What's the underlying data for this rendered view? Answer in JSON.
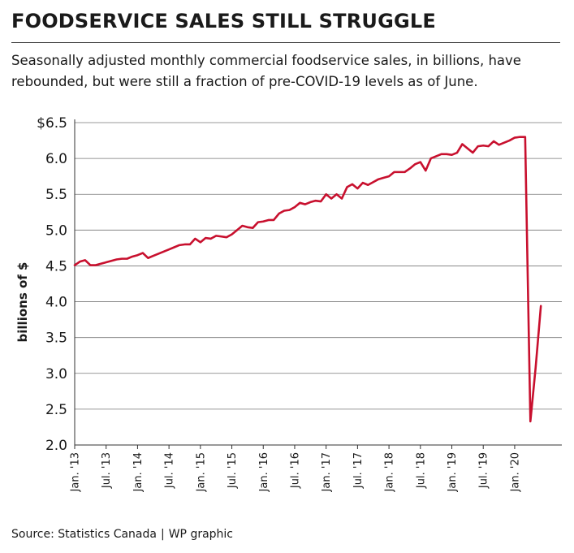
{
  "header": {
    "title": "FOODSERVICE SALES STILL STRUGGLE",
    "subtitle": "Seasonally adjusted monthly commercial foodservice sales, in billions, have rebounded, but were still a fraction of pre-COVID-19 levels as of June."
  },
  "footer": {
    "source": "Source: Statistics Canada",
    "separator": "|",
    "credit": "WP graphic"
  },
  "chart_data": {
    "type": "line",
    "title": "FOODSERVICE SALES STILL STRUGGLE",
    "subtitle": "Seasonally adjusted monthly commercial foodservice sales, in billions, have rebounded, but were still a fraction of pre-COVID-19 levels as of June.",
    "xlabel": "",
    "ylabel": "billions of $",
    "ylim": [
      2.0,
      6.5
    ],
    "grid": "horizontal",
    "legend": "none",
    "line_color": "#c8102e",
    "y_ticks": [
      {
        "value": 2.0,
        "label": "2.0"
      },
      {
        "value": 2.5,
        "label": "2.5"
      },
      {
        "value": 3.0,
        "label": "3.0"
      },
      {
        "value": 3.5,
        "label": "3.5"
      },
      {
        "value": 4.0,
        "label": "4.0"
      },
      {
        "value": 4.5,
        "label": "4.5"
      },
      {
        "value": 5.0,
        "label": "5.0"
      },
      {
        "value": 5.5,
        "label": "5.5"
      },
      {
        "value": 6.0,
        "label": "6.0"
      },
      {
        "value": 6.5,
        "label": "$6.5"
      }
    ],
    "x_ticks": [
      {
        "date": "2013-01",
        "label": "Jan. '13"
      },
      {
        "date": "2013-07",
        "label": "Jul. '13"
      },
      {
        "date": "2014-01",
        "label": "Jan. '14"
      },
      {
        "date": "2014-07",
        "label": "Jul. '14"
      },
      {
        "date": "2015-01",
        "label": "Jan. '15"
      },
      {
        "date": "2015-07",
        "label": "Jul. '15"
      },
      {
        "date": "2016-01",
        "label": "Jan. '16"
      },
      {
        "date": "2016-07",
        "label": "Jul. '16"
      },
      {
        "date": "2017-01",
        "label": "Jan. '17"
      },
      {
        "date": "2017-07",
        "label": "Jul. '17"
      },
      {
        "date": "2018-01",
        "label": "Jan. '18"
      },
      {
        "date": "2018-07",
        "label": "Jul. '18"
      },
      {
        "date": "2019-01",
        "label": "Jan. '19"
      },
      {
        "date": "2019-07",
        "label": "Jul. '19"
      },
      {
        "date": "2020-01",
        "label": "Jan. '20"
      }
    ],
    "x": [
      "2013-01",
      "2013-02",
      "2013-03",
      "2013-04",
      "2013-05",
      "2013-06",
      "2013-07",
      "2013-08",
      "2013-09",
      "2013-10",
      "2013-11",
      "2013-12",
      "2014-01",
      "2014-02",
      "2014-03",
      "2014-04",
      "2014-05",
      "2014-06",
      "2014-07",
      "2014-08",
      "2014-09",
      "2014-10",
      "2014-11",
      "2014-12",
      "2015-01",
      "2015-02",
      "2015-03",
      "2015-04",
      "2015-05",
      "2015-06",
      "2015-07",
      "2015-08",
      "2015-09",
      "2015-10",
      "2015-11",
      "2015-12",
      "2016-01",
      "2016-02",
      "2016-03",
      "2016-04",
      "2016-05",
      "2016-06",
      "2016-07",
      "2016-08",
      "2016-09",
      "2016-10",
      "2016-11",
      "2016-12",
      "2017-01",
      "2017-02",
      "2017-03",
      "2017-04",
      "2017-05",
      "2017-06",
      "2017-07",
      "2017-08",
      "2017-09",
      "2017-10",
      "2017-11",
      "2017-12",
      "2018-01",
      "2018-02",
      "2018-03",
      "2018-04",
      "2018-05",
      "2018-06",
      "2018-07",
      "2018-08",
      "2018-09",
      "2018-10",
      "2018-11",
      "2018-12",
      "2019-01",
      "2019-02",
      "2019-03",
      "2019-04",
      "2019-05",
      "2019-06",
      "2019-07",
      "2019-08",
      "2019-09",
      "2019-10",
      "2019-11",
      "2019-12",
      "2020-01",
      "2020-02",
      "2020-03",
      "2020-04",
      "2020-05",
      "2020-06"
    ],
    "values": [
      4.51,
      4.56,
      4.58,
      4.51,
      4.51,
      4.53,
      4.55,
      4.57,
      4.59,
      4.6,
      4.6,
      4.63,
      4.65,
      4.68,
      4.61,
      4.64,
      4.67,
      4.7,
      4.73,
      4.76,
      4.79,
      4.8,
      4.8,
      4.88,
      4.83,
      4.89,
      4.88,
      4.92,
      4.91,
      4.9,
      4.94,
      5.0,
      5.06,
      5.04,
      5.03,
      5.11,
      5.12,
      5.14,
      5.14,
      5.23,
      5.27,
      5.28,
      5.32,
      5.38,
      5.36,
      5.39,
      5.41,
      5.4,
      5.5,
      5.44,
      5.5,
      5.44,
      5.6,
      5.64,
      5.58,
      5.66,
      5.63,
      5.67,
      5.71,
      5.73,
      5.75,
      5.81,
      5.81,
      5.81,
      5.86,
      5.92,
      5.95,
      5.83,
      6.0,
      6.03,
      6.06,
      6.06,
      6.05,
      6.08,
      6.2,
      6.14,
      6.08,
      6.17,
      6.18,
      6.17,
      6.24,
      6.19,
      6.22,
      6.25,
      6.29,
      6.3,
      6.3,
      2.33,
      3.08,
      3.94
    ]
  }
}
